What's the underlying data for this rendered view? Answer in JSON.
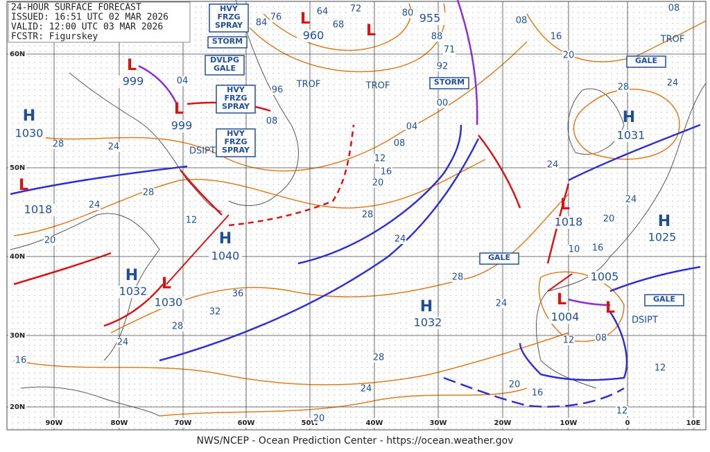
{
  "header": {
    "lines": [
      "24-HOUR SURFACE FORECAST",
      "ISSUED: 16:51 UTC 02 MAR 2026",
      "VALID: 12:00 UTC 03 MAR 2026",
      "FCSTR: Figurskey"
    ]
  },
  "footer": "NWS/NCEP - Ocean Prediction Center - https://ocean.weather.gov",
  "lat_labels": [
    "60N",
    "50N",
    "40N",
    "30N",
    "20N"
  ],
  "lon_labels": [
    "90W",
    "80W",
    "70W",
    "60W",
    "50W",
    "40W",
    "30W",
    "20W",
    "10W",
    "0",
    "10E"
  ],
  "centers": [
    {
      "letter": "H",
      "value": "1030"
    },
    {
      "letter": "L",
      "value": "999"
    },
    {
      "letter": "L",
      "value": "999"
    },
    {
      "letter": "L",
      "value": "1018"
    },
    {
      "letter": "H",
      "value": "1040"
    },
    {
      "letter": "H",
      "value": "1032"
    },
    {
      "letter": "L",
      "value": "1030"
    },
    {
      "letter": "L",
      "value": "960"
    },
    {
      "letter": "L",
      "value": "955"
    },
    {
      "letter": "H",
      "value": "1031"
    },
    {
      "letter": "L",
      "value": "1018"
    },
    {
      "letter": "H",
      "value": "1025"
    },
    {
      "letter": "H",
      "value": "1032"
    },
    {
      "letter": "L",
      "value": "1004"
    },
    {
      "letter": "L",
      "value": "1005"
    }
  ],
  "warnings": [
    {
      "lines": [
        "HVY",
        "FRZG",
        "SPRAY"
      ]
    },
    {
      "lines": [
        "STORM"
      ]
    },
    {
      "lines": [
        "DVLPG",
        "GALE"
      ]
    },
    {
      "lines": [
        "HVY",
        "FRZG",
        "SPRAY"
      ]
    },
    {
      "lines": [
        "HVY",
        "FRZG",
        "SPRAY"
      ]
    },
    {
      "lines": [
        "STORM"
      ]
    },
    {
      "lines": [
        "GALE"
      ]
    },
    {
      "lines": [
        "GALE"
      ]
    },
    {
      "lines": [
        "GALE"
      ]
    }
  ],
  "notes": [
    "TROF",
    "TROF",
    "TROF",
    "DSIPT",
    "DSIPT"
  ],
  "isobar_labels": [
    "64",
    "68",
    "72",
    "76",
    "80",
    "84",
    "88",
    "92",
    "96",
    "00",
    "04",
    "04",
    "08",
    "08",
    "12",
    "16",
    "20",
    "24",
    "28",
    "28",
    "24",
    "20",
    "28",
    "24",
    "36",
    "32",
    "28",
    "24",
    "16",
    "28",
    "24",
    "20",
    "28",
    "24",
    "08",
    "16",
    "20",
    "28",
    "24",
    "08",
    "24",
    "24",
    "20",
    "16",
    "12",
    "08",
    "20",
    "16",
    "12",
    "12",
    "10",
    "12",
    "71"
  ]
}
